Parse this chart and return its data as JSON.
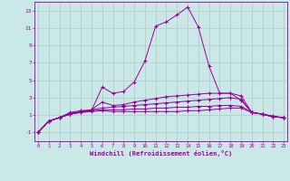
{
  "background_color": "#cbe8e8",
  "grid_color": "#b0d0c8",
  "line_color": "#990099",
  "xlabel": "Windchill (Refroidissement éolien,°C)",
  "xtick_labels": [
    "0",
    "1",
    "2",
    "3",
    "4",
    "5",
    "6",
    "7",
    "8",
    "9",
    "10",
    "11",
    "12",
    "13",
    "14",
    "15",
    "16",
    "17",
    "18",
    "19",
    "20",
    "21",
    "22",
    "23"
  ],
  "ytick_vals": [
    -1,
    1,
    3,
    5,
    7,
    9,
    11,
    13
  ],
  "ytick_labels": [
    "-1",
    "1",
    "3",
    "5",
    "7",
    "9",
    "11",
    "13"
  ],
  "ylim": [
    -2.0,
    14.0
  ],
  "xlim": [
    -0.3,
    23.3
  ],
  "lines": [
    {
      "x": [
        0,
        1,
        2,
        3,
        4,
        5,
        6,
        7,
        8,
        9,
        10,
        11,
        12,
        13,
        14,
        15,
        16,
        17,
        18,
        19,
        20,
        21,
        22,
        23
      ],
      "y": [
        -1.0,
        0.3,
        0.7,
        1.1,
        1.3,
        1.5,
        4.2,
        3.5,
        3.7,
        4.8,
        7.2,
        11.2,
        11.7,
        12.5,
        13.4,
        11.1,
        6.6,
        3.5,
        3.5,
        2.7,
        1.3,
        1.1,
        0.8,
        0.7
      ]
    },
    {
      "x": [
        0,
        1,
        2,
        3,
        4,
        5,
        6,
        7,
        8,
        9,
        10,
        11,
        12,
        13,
        14,
        15,
        16,
        17,
        18,
        19,
        20,
        21,
        22,
        23
      ],
      "y": [
        -1.0,
        0.3,
        0.7,
        1.1,
        1.4,
        1.6,
        2.5,
        2.1,
        2.2,
        2.5,
        2.7,
        2.9,
        3.1,
        3.2,
        3.3,
        3.4,
        3.5,
        3.5,
        3.5,
        3.2,
        1.3,
        1.1,
        0.8,
        0.7
      ]
    },
    {
      "x": [
        0,
        1,
        2,
        3,
        4,
        5,
        6,
        7,
        8,
        9,
        10,
        11,
        12,
        13,
        14,
        15,
        16,
        17,
        18,
        19,
        20,
        21,
        22,
        23
      ],
      "y": [
        -1.0,
        0.3,
        0.7,
        1.3,
        1.5,
        1.6,
        1.8,
        1.9,
        2.0,
        2.1,
        2.2,
        2.3,
        2.4,
        2.5,
        2.6,
        2.7,
        2.8,
        2.9,
        3.0,
        2.8,
        1.3,
        1.1,
        0.8,
        0.7
      ]
    },
    {
      "x": [
        0,
        1,
        2,
        3,
        4,
        5,
        6,
        7,
        8,
        9,
        10,
        11,
        12,
        13,
        14,
        15,
        16,
        17,
        18,
        19,
        20,
        21,
        22,
        23
      ],
      "y": [
        -1.0,
        0.3,
        0.7,
        1.2,
        1.4,
        1.5,
        1.6,
        1.6,
        1.6,
        1.7,
        1.7,
        1.8,
        1.8,
        1.9,
        1.9,
        2.0,
        2.0,
        2.1,
        2.1,
        2.0,
        1.3,
        1.1,
        0.9,
        0.7
      ]
    },
    {
      "x": [
        0,
        1,
        2,
        3,
        4,
        5,
        6,
        7,
        8,
        9,
        10,
        11,
        12,
        13,
        14,
        15,
        16,
        17,
        18,
        19,
        20,
        21,
        22,
        23
      ],
      "y": [
        -1.0,
        0.3,
        0.7,
        1.1,
        1.3,
        1.4,
        1.5,
        1.4,
        1.4,
        1.4,
        1.4,
        1.4,
        1.4,
        1.4,
        1.5,
        1.5,
        1.6,
        1.7,
        1.8,
        1.8,
        1.3,
        1.1,
        0.8,
        0.7
      ]
    }
  ]
}
